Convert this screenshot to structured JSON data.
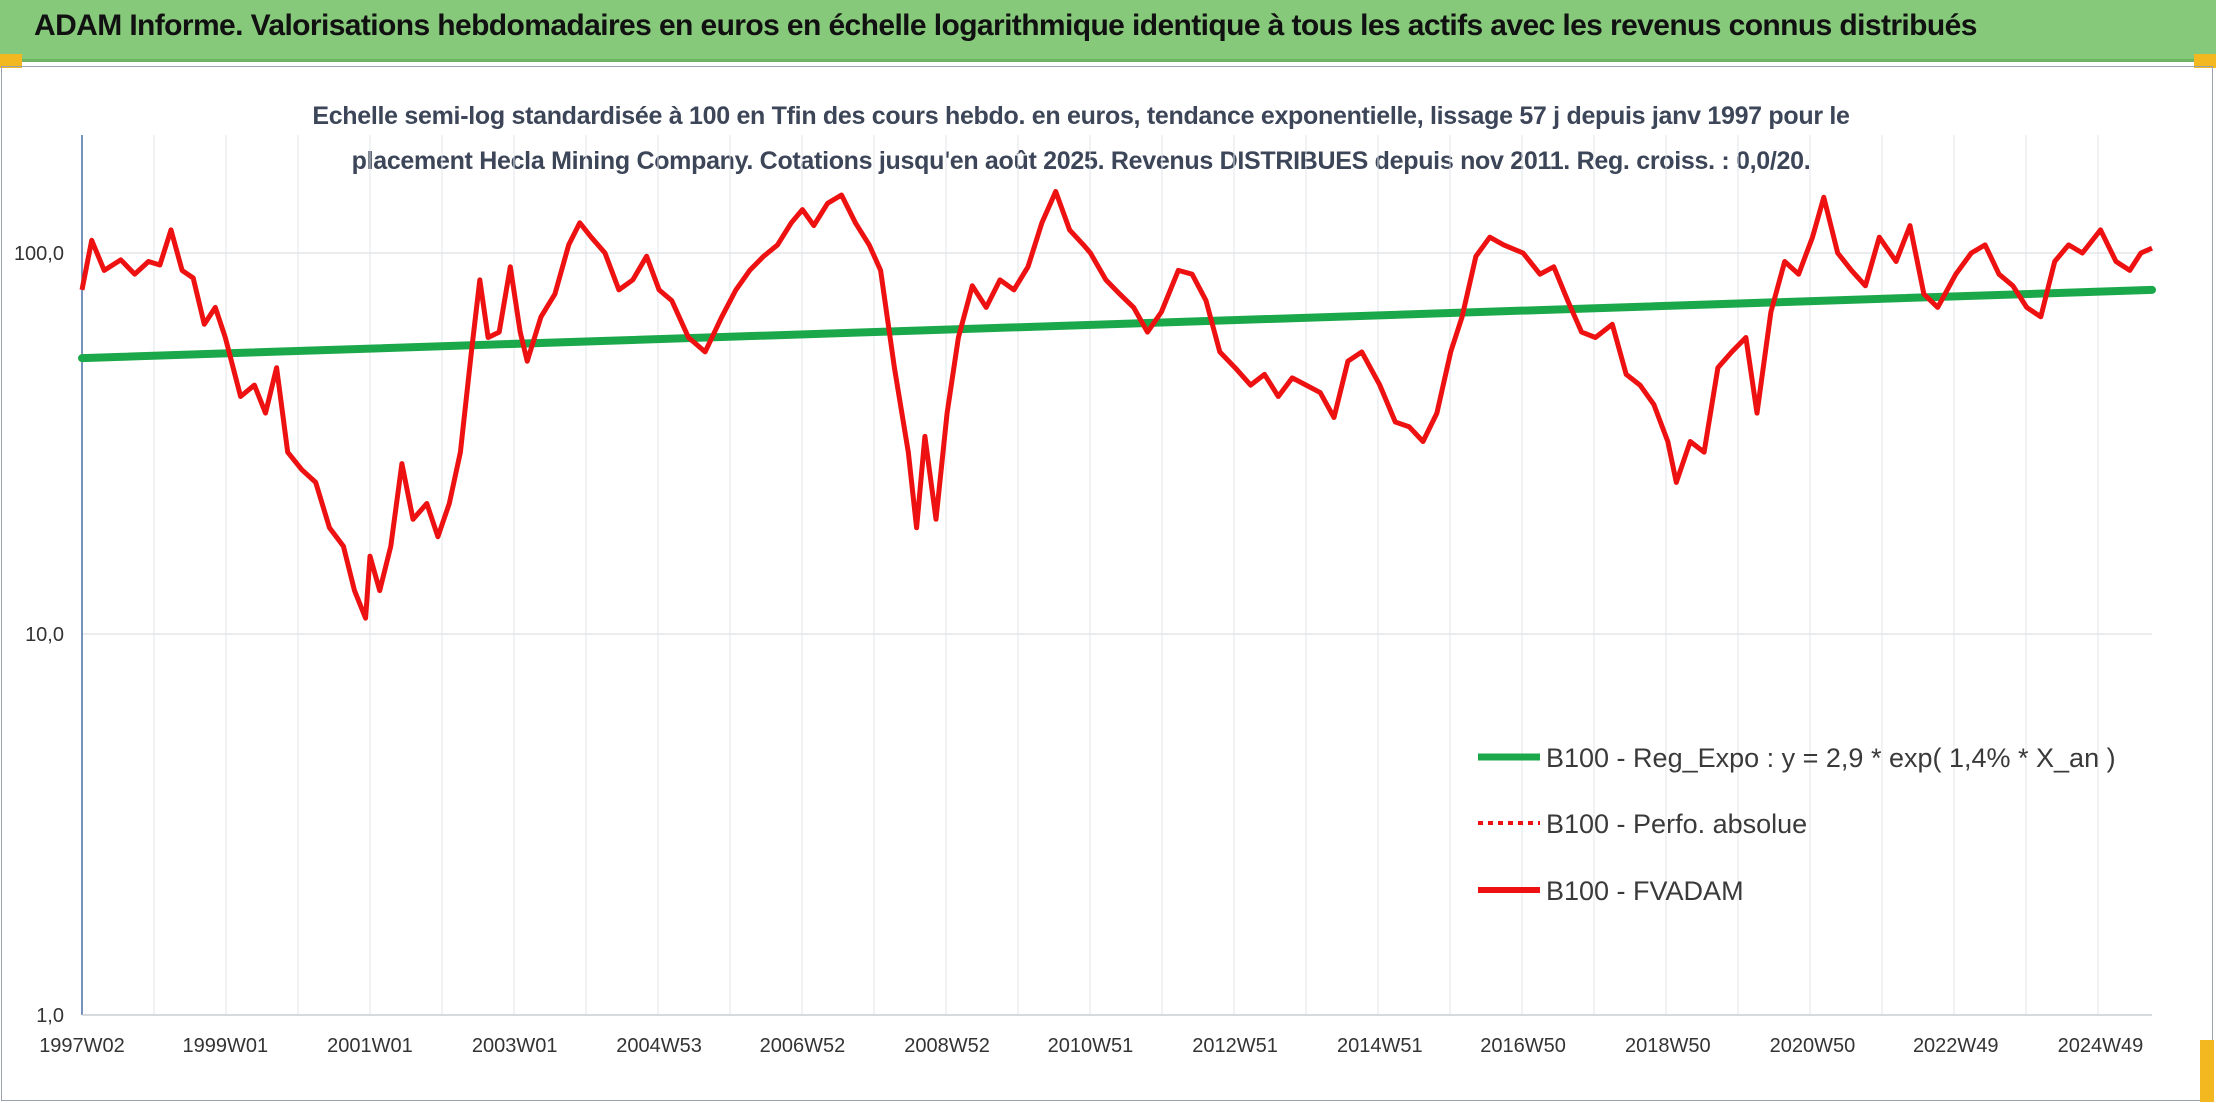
{
  "banner": {
    "title": "ADAM Informe. Valorisations hebdomadaires en euros en échelle logarithmique identique à tous les actifs avec les revenus connus distribués"
  },
  "colors": {
    "banner": "#86c97a",
    "accent": "#f3b71f",
    "trend": "#1ba84a",
    "fvadam": "#ee1111",
    "perfo": "#ee1111"
  },
  "chart_data": {
    "type": "line",
    "title_line1": "Echelle semi-log standardisée à 100 en Tfin des cours hebdo. en euros, tendance exponentielle, lissage 57 j depuis janv 1997 pour le",
    "title_line2": "placement Hecla Mining Company. Cotations jusqu'en août 2025. Revenus DISTRIBUES depuis nov 2011. Reg. croiss. : 0,0/20.",
    "y_scale": "log",
    "ylim": [
      1,
      200
    ],
    "y_ticks": [
      "1,0",
      "10,0",
      "100,0"
    ],
    "x_range": [
      "1997W02",
      "2025W34"
    ],
    "x_ticks": [
      "1997W02",
      "1999W01",
      "2001W01",
      "2003W01",
      "2004W53",
      "2006W52",
      "2008W52",
      "2010W51",
      "2012W51",
      "2014W51",
      "2016W50",
      "2018W50",
      "2020W50",
      "2022W49",
      "2024W49"
    ],
    "grid": "vertical",
    "legend_position": "bottom-right",
    "series": [
      {
        "name": "B100 - Reg_Expo : y = 2,9 * exp( 1,4% *  X_an )",
        "style": "solid-thick",
        "points": [
          [
            "1997W02",
            53
          ],
          [
            "2025W34",
            80
          ]
        ]
      },
      {
        "name": "B100 - Perfo. absolue",
        "style": "dotted",
        "points": []
      },
      {
        "name": "B100 - FVADAM",
        "style": "solid",
        "points": [
          [
            "1997W02",
            80
          ],
          [
            "1997W09",
            108
          ],
          [
            "1997W18",
            90
          ],
          [
            "1997W30",
            96
          ],
          [
            "1997W40",
            88
          ],
          [
            "1997W50",
            95
          ],
          [
            "1998W06",
            93
          ],
          [
            "1998W14",
            115
          ],
          [
            "1998W22",
            90
          ],
          [
            "1998W30",
            86
          ],
          [
            "1998W38",
            65
          ],
          [
            "1998W46",
            72
          ],
          [
            "1999W01",
            60
          ],
          [
            "1999W12",
            42
          ],
          [
            "1999W22",
            45
          ],
          [
            "1999W30",
            38
          ],
          [
            "1999W38",
            50
          ],
          [
            "1999W46",
            30
          ],
          [
            "2000W04",
            27
          ],
          [
            "2000W14",
            25
          ],
          [
            "2000W24",
            19
          ],
          [
            "2000W34",
            17
          ],
          [
            "2000W42",
            13
          ],
          [
            "2000W50",
            11
          ],
          [
            "2001W01",
            16
          ],
          [
            "2001W08",
            13
          ],
          [
            "2001W16",
            17
          ],
          [
            "2001W24",
            28
          ],
          [
            "2001W32",
            20
          ],
          [
            "2001W42",
            22
          ],
          [
            "2001W50",
            18
          ],
          [
            "2002W06",
            22
          ],
          [
            "2002W14",
            30
          ],
          [
            "2002W22",
            55
          ],
          [
            "2002W28",
            85
          ],
          [
            "2002W34",
            60
          ],
          [
            "2002W42",
            62
          ],
          [
            "2002W50",
            92
          ],
          [
            "2003W05",
            62
          ],
          [
            "2003W10",
            52
          ],
          [
            "2003W20",
            68
          ],
          [
            "2003W30",
            78
          ],
          [
            "2003W40",
            105
          ],
          [
            "2003W48",
            120
          ],
          [
            "2004W04",
            110
          ],
          [
            "2004W14",
            100
          ],
          [
            "2004W24",
            80
          ],
          [
            "2004W34",
            85
          ],
          [
            "2004W44",
            98
          ],
          [
            "2004W53",
            80
          ],
          [
            "2005W10",
            75
          ],
          [
            "2005W22",
            60
          ],
          [
            "2005W34",
            55
          ],
          [
            "2005W46",
            68
          ],
          [
            "2006W04",
            80
          ],
          [
            "2006W14",
            90
          ],
          [
            "2006W24",
            98
          ],
          [
            "2006W34",
            105
          ],
          [
            "2006W44",
            120
          ],
          [
            "2006W52",
            130
          ],
          [
            "2007W08",
            118
          ],
          [
            "2007W18",
            135
          ],
          [
            "2007W28",
            142
          ],
          [
            "2007W38",
            120
          ],
          [
            "2007W48",
            105
          ],
          [
            "2008W04",
            90
          ],
          [
            "2008W14",
            50
          ],
          [
            "2008W24",
            30
          ],
          [
            "2008W30",
            19
          ],
          [
            "2008W36",
            33
          ],
          [
            "2008W44",
            20
          ],
          [
            "2008W52",
            38
          ],
          [
            "2009W08",
            60
          ],
          [
            "2009W18",
            82
          ],
          [
            "2009W28",
            72
          ],
          [
            "2009W38",
            85
          ],
          [
            "2009W48",
            80
          ],
          [
            "2010W06",
            92
          ],
          [
            "2010W16",
            120
          ],
          [
            "2010W26",
            145
          ],
          [
            "2010W36",
            115
          ],
          [
            "2010W46",
            105
          ],
          [
            "2010W51",
            100
          ],
          [
            "2011W10",
            85
          ],
          [
            "2011W20",
            78
          ],
          [
            "2011W30",
            72
          ],
          [
            "2011W40",
            62
          ],
          [
            "2011W50",
            70
          ],
          [
            "2012W10",
            90
          ],
          [
            "2012W20",
            88
          ],
          [
            "2012W30",
            75
          ],
          [
            "2012W40",
            55
          ],
          [
            "2012W51",
            50
          ],
          [
            "2013W10",
            45
          ],
          [
            "2013W20",
            48
          ],
          [
            "2013W30",
            42
          ],
          [
            "2013W40",
            47
          ],
          [
            "2013W50",
            45
          ],
          [
            "2014W08",
            43
          ],
          [
            "2014W18",
            37
          ],
          [
            "2014W28",
            52
          ],
          [
            "2014W38",
            55
          ],
          [
            "2014W51",
            45
          ],
          [
            "2015W10",
            36
          ],
          [
            "2015W20",
            35
          ],
          [
            "2015W30",
            32
          ],
          [
            "2015W40",
            38
          ],
          [
            "2015W50",
            55
          ],
          [
            "2016W06",
            68
          ],
          [
            "2016W16",
            98
          ],
          [
            "2016W26",
            110
          ],
          [
            "2016W36",
            105
          ],
          [
            "2016W50",
            100
          ],
          [
            "2017W10",
            88
          ],
          [
            "2017W20",
            92
          ],
          [
            "2017W30",
            75
          ],
          [
            "2017W40",
            62
          ],
          [
            "2017W50",
            60
          ],
          [
            "2018W10",
            65
          ],
          [
            "2018W20",
            48
          ],
          [
            "2018W30",
            45
          ],
          [
            "2018W40",
            40
          ],
          [
            "2018W50",
            32
          ],
          [
            "2019W04",
            25
          ],
          [
            "2019W14",
            32
          ],
          [
            "2019W24",
            30
          ],
          [
            "2019W34",
            50
          ],
          [
            "2019W44",
            55
          ],
          [
            "2020W02",
            60
          ],
          [
            "2020W10",
            38
          ],
          [
            "2020W20",
            70
          ],
          [
            "2020W30",
            95
          ],
          [
            "2020W40",
            88
          ],
          [
            "2020W50",
            110
          ],
          [
            "2021W06",
            140
          ],
          [
            "2021W16",
            100
          ],
          [
            "2021W26",
            90
          ],
          [
            "2021W36",
            82
          ],
          [
            "2021W46",
            110
          ],
          [
            "2022W06",
            95
          ],
          [
            "2022W16",
            118
          ],
          [
            "2022W26",
            78
          ],
          [
            "2022W36",
            72
          ],
          [
            "2022W49",
            88
          ],
          [
            "2023W08",
            100
          ],
          [
            "2023W18",
            105
          ],
          [
            "2023W28",
            88
          ],
          [
            "2023W38",
            82
          ],
          [
            "2023W48",
            72
          ],
          [
            "2024W06",
            68
          ],
          [
            "2024W16",
            95
          ],
          [
            "2024W26",
            105
          ],
          [
            "2024W36",
            100
          ],
          [
            "2024W49",
            115
          ],
          [
            "2025W08",
            95
          ],
          [
            "2025W18",
            90
          ],
          [
            "2025W26",
            100
          ],
          [
            "2025W34",
            103
          ]
        ]
      }
    ]
  }
}
